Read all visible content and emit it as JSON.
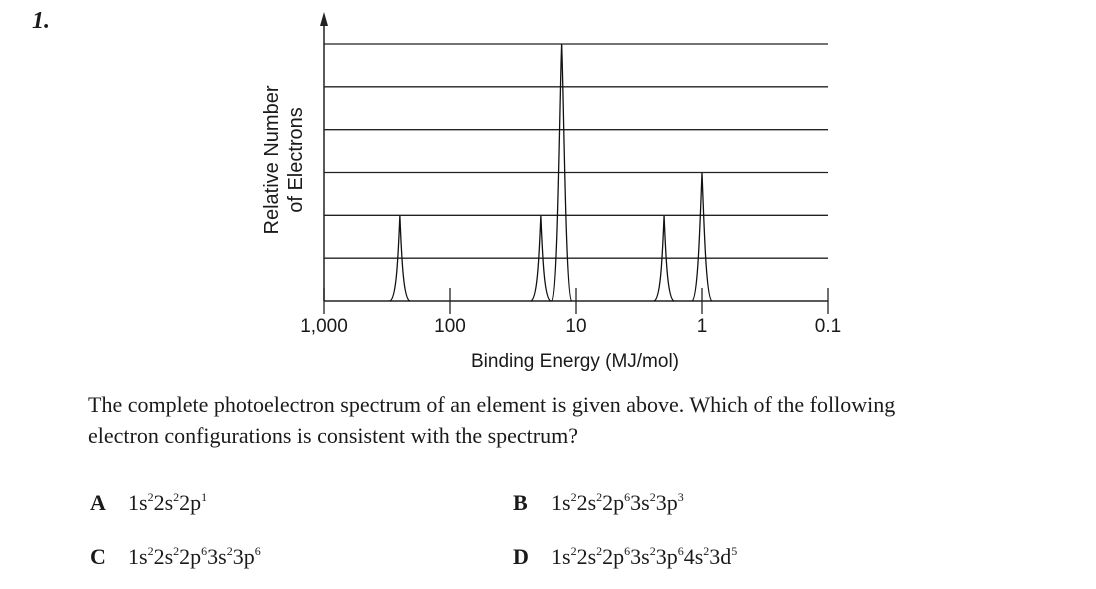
{
  "question": {
    "number": "1.",
    "text_line1": "The complete photoelectron spectrum of an element is given above. Which of the following",
    "text_line2": "electron configurations is consistent with the spectrum?"
  },
  "choices": [
    {
      "letter": "A",
      "config": [
        [
          "1s",
          "2"
        ],
        [
          "2s",
          "2"
        ],
        [
          "2p",
          "1"
        ]
      ]
    },
    {
      "letter": "B",
      "config": [
        [
          "1s",
          "2"
        ],
        [
          "2s",
          "2"
        ],
        [
          "2p",
          "6"
        ],
        [
          "3s",
          "2"
        ],
        [
          "3p",
          "3"
        ]
      ]
    },
    {
      "letter": "C",
      "config": [
        [
          "1s",
          "2"
        ],
        [
          "2s",
          "2"
        ],
        [
          "2p",
          "6"
        ],
        [
          "3s",
          "2"
        ],
        [
          "3p",
          "6"
        ]
      ]
    },
    {
      "letter": "D",
      "config": [
        [
          "1s",
          "2"
        ],
        [
          "2s",
          "2"
        ],
        [
          "2p",
          "6"
        ],
        [
          "3s",
          "2"
        ],
        [
          "3p",
          "6"
        ],
        [
          "4s",
          "2"
        ],
        [
          "3d",
          "5"
        ]
      ]
    }
  ],
  "chart_data": {
    "type": "line",
    "xlabel": "Binding Energy (MJ/mol)",
    "ylabel_line1": "Relative Number",
    "ylabel_line2": "of Electrons",
    "x_scale": "log",
    "x_reversed": true,
    "xlim": [
      1000,
      0.1
    ],
    "x_ticks": [
      1000,
      100,
      10,
      1,
      0.1
    ],
    "x_tick_labels": [
      "1,000",
      "100",
      "10",
      "1",
      "0.1"
    ],
    "ylim": [
      0,
      6
    ],
    "y_gridlines": [
      1,
      2,
      3,
      4,
      5,
      6
    ],
    "grid": true,
    "peaks": [
      {
        "x": 250,
        "y": 2
      },
      {
        "x": 19,
        "y": 2
      },
      {
        "x": 13,
        "y": 6
      },
      {
        "x": 2.0,
        "y": 2
      },
      {
        "x": 1.0,
        "y": 3
      }
    ]
  }
}
